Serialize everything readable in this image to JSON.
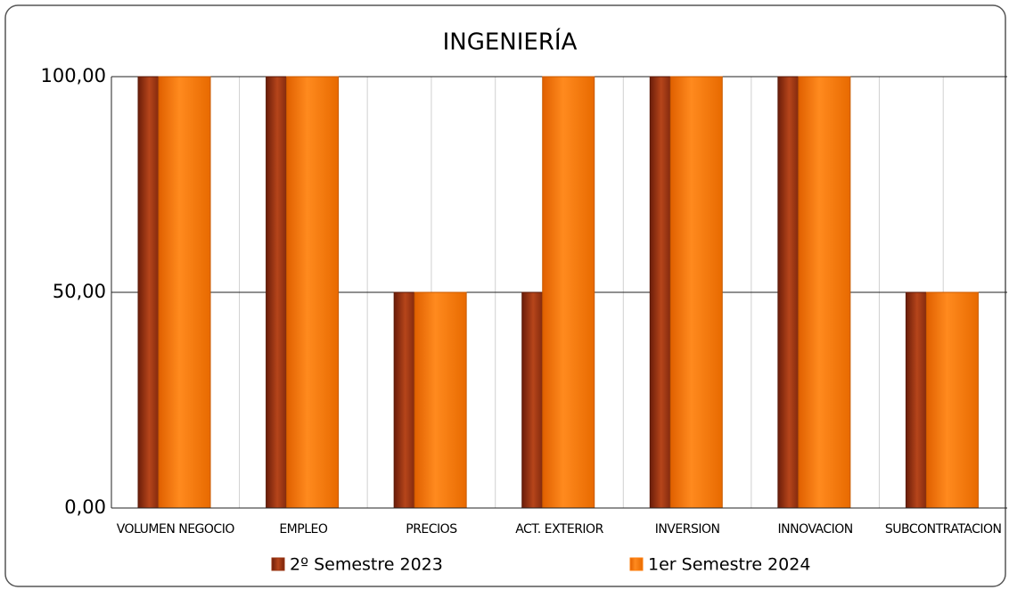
{
  "chart_data": {
    "type": "bar",
    "title": "INGENIERÍA",
    "categories": [
      "VOLUMEN NEGOCIO",
      "EMPLEO",
      "PRECIOS",
      "ACT. EXTERIOR",
      "INVERSION",
      "INNOVACION",
      "SUBCONTRATACION"
    ],
    "series": [
      {
        "name": "2º Semestre 2023",
        "color": "#9a3412",
        "values": [
          100,
          100,
          50,
          50,
          100,
          100,
          50
        ]
      },
      {
        "name": "1er Semestre 2024",
        "color": "#ff7f0e",
        "values": [
          100,
          100,
          50,
          100,
          100,
          100,
          50
        ]
      }
    ],
    "ylim": [
      0,
      100
    ],
    "yticks": [
      {
        "value": 0,
        "label": "0,00"
      },
      {
        "value": 50,
        "label": "50,00"
      },
      {
        "value": 100,
        "label": "100,00"
      }
    ],
    "grid": true,
    "legend": "bottom"
  }
}
